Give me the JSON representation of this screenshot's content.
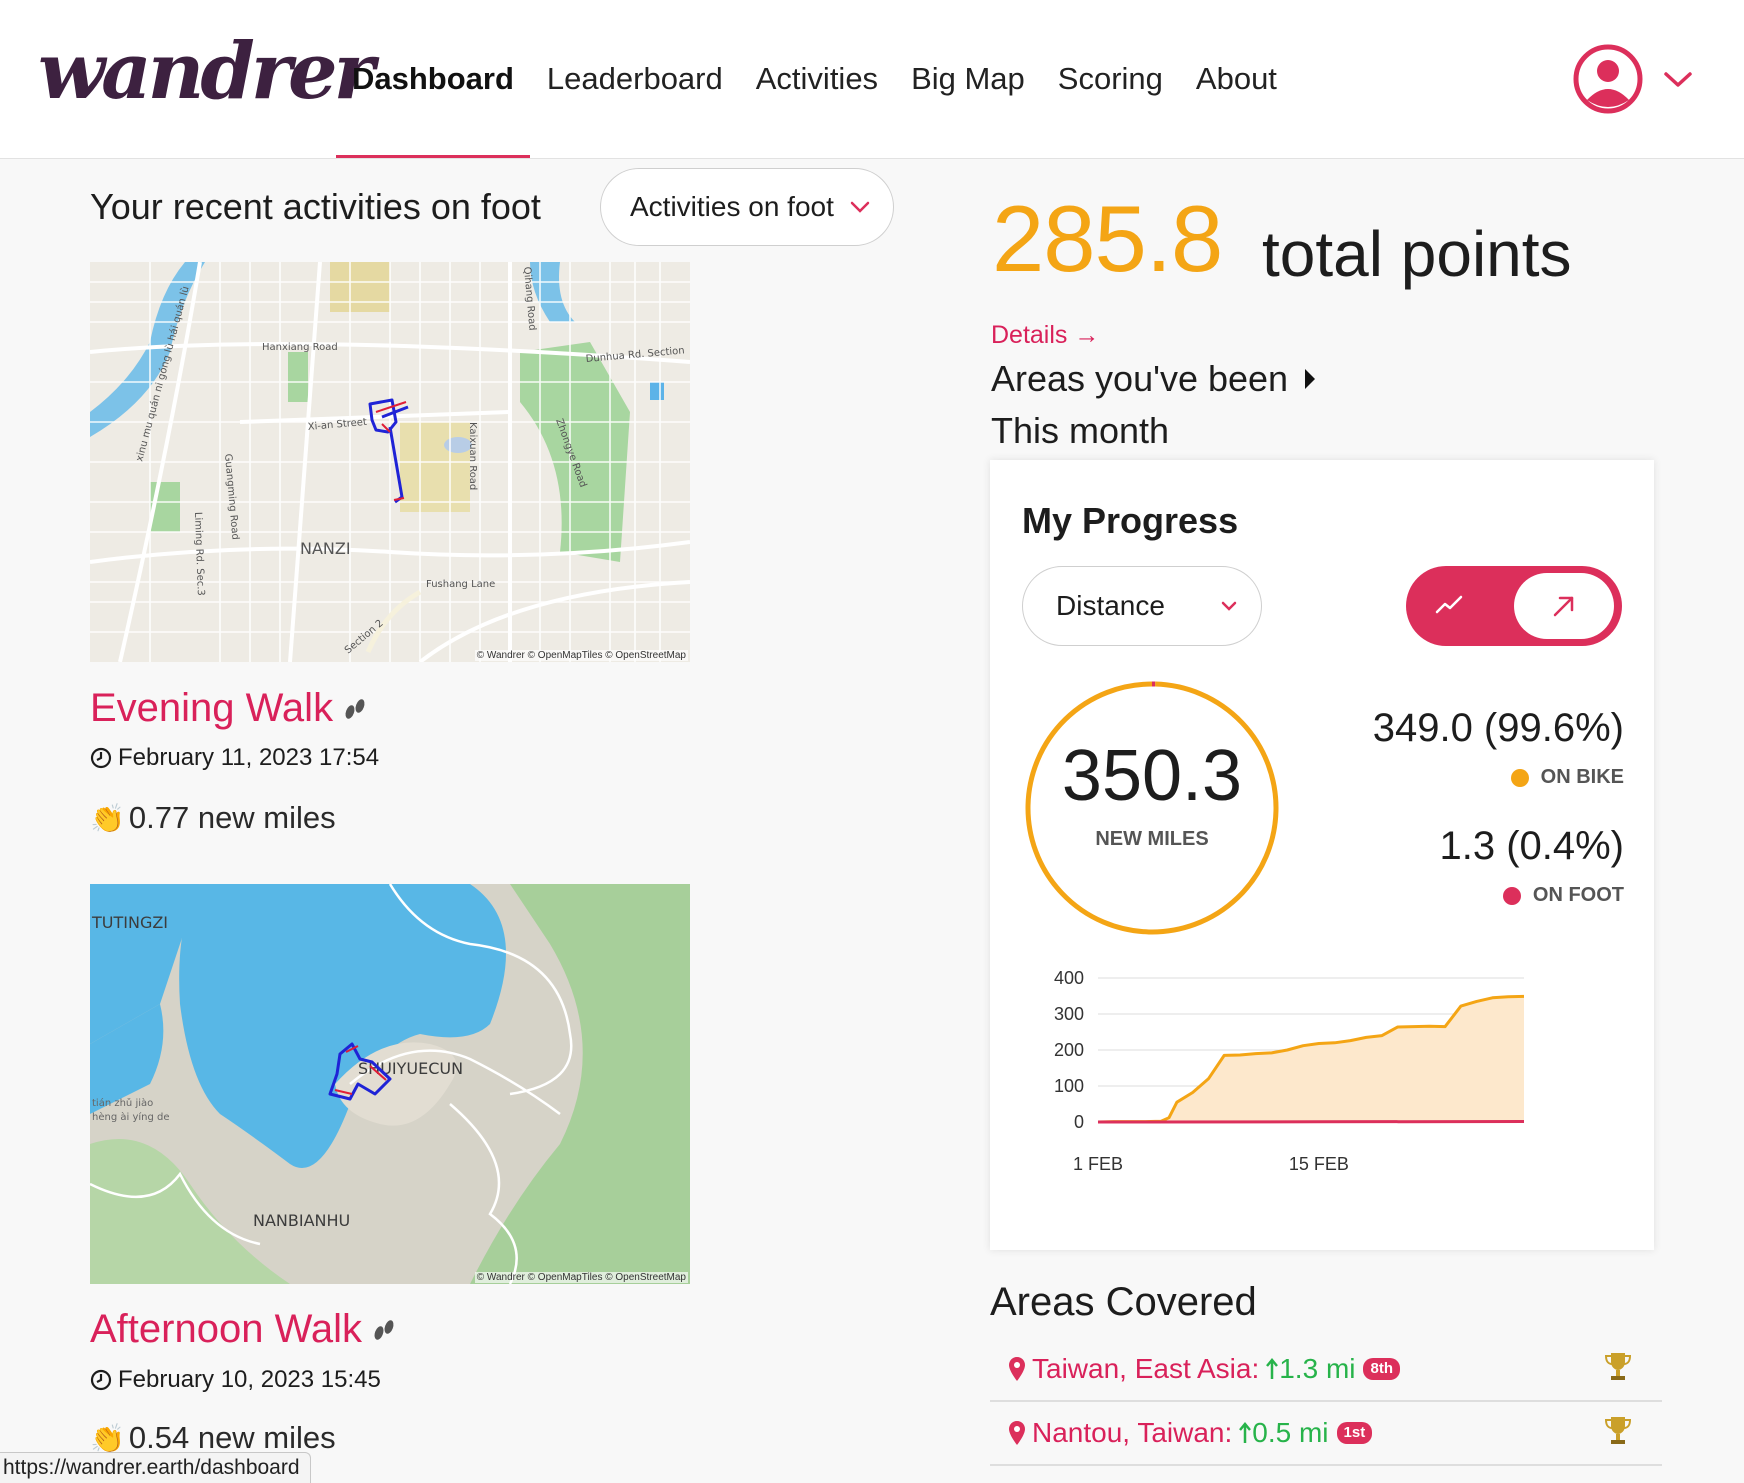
{
  "brand": {
    "logo_text": "wandrer"
  },
  "nav": {
    "items": [
      {
        "label": "Dashboard",
        "active": true
      },
      {
        "label": "Leaderboard"
      },
      {
        "label": "Activities"
      },
      {
        "label": "Big Map"
      },
      {
        "label": "Scoring"
      },
      {
        "label": "About"
      }
    ]
  },
  "recent": {
    "title": "Your recent activities on foot",
    "filter_label": "Activities on foot",
    "activities": [
      {
        "name": "Evening Walk",
        "date": "February 11, 2023 17:54",
        "miles": "0.77 new miles",
        "map_labels": [
          "Hanxiang Road",
          "Xi-an Street",
          "NANZI",
          "Fushang Lane",
          "Kaixuan Road",
          "Zhongye Road",
          "Dunhua Rd. Section",
          "Qihang Road",
          "Guangming Road",
          "Liming Rd. Sec.3",
          "Section 2",
          "Nanzi"
        ],
        "attribution": "© Wandrer © OpenMapTiles © OpenStreetMap"
      },
      {
        "name": "Afternoon Walk",
        "date": "February 10, 2023 15:45",
        "miles": "0.54 new miles",
        "map_labels": [
          "TUTINGZI",
          "SHUIYUECUN",
          "NANBIANHU",
          "tián zhǔ jiào",
          "hèng ài yíng de"
        ],
        "attribution": "© Wandrer © OpenMapTiles © OpenStreetMap"
      }
    ]
  },
  "points": {
    "value": "285.8",
    "label": "total points",
    "details": "Details →",
    "areas_been": "Areas you've been",
    "period": "This month"
  },
  "progress": {
    "title": "My Progress",
    "metric": "Distance",
    "total_value": "350.3",
    "total_label": "NEW MILES",
    "bike_share": 0.996,
    "bike_value": "349.0 (99.6%)",
    "bike_label": "ON BIKE",
    "foot_value": "1.3 (0.4%)",
    "foot_label": "ON FOOT",
    "colors": {
      "bike": "#f4a515",
      "foot": "#dc2f5b",
      "accent": "#dc2f5b"
    }
  },
  "chart_data": {
    "type": "area",
    "ylim": [
      0,
      400
    ],
    "yticks": [
      "400",
      "300",
      "200",
      "100",
      "0"
    ],
    "xticks": [
      {
        "label": "1 FEB",
        "x": 1
      },
      {
        "label": "15 FEB",
        "x": 15
      }
    ],
    "xlim": [
      1,
      28
    ],
    "series": [
      {
        "name": "ON BIKE",
        "color": "#f4a515",
        "x": [
          1,
          2,
          3,
          4,
          5,
          5.5,
          6,
          7,
          8,
          9,
          10,
          11,
          12,
          13,
          14,
          15,
          16,
          17,
          18,
          19,
          20,
          21,
          22,
          23,
          24,
          25,
          26,
          27,
          28
        ],
        "values": [
          0,
          1,
          1,
          1,
          2,
          12,
          55,
          82,
          120,
          185,
          186,
          190,
          192,
          200,
          212,
          218,
          220,
          226,
          235,
          240,
          264,
          265,
          266,
          265,
          322,
          335,
          345,
          348,
          349
        ]
      },
      {
        "name": "ON FOOT",
        "color": "#dc2f5b",
        "x": [
          1,
          15,
          28
        ],
        "values": [
          0,
          0.6,
          1.3
        ]
      }
    ]
  },
  "areas": {
    "title": "Areas Covered",
    "rows": [
      {
        "name": "Taiwan, East Asia",
        "gain": "1.3 mi",
        "rank": "8th"
      },
      {
        "name": "Nantou, Taiwan",
        "gain": "0.5 mi",
        "rank": "1st"
      }
    ]
  },
  "status_url": "https://wandrer.earth/dashboard"
}
